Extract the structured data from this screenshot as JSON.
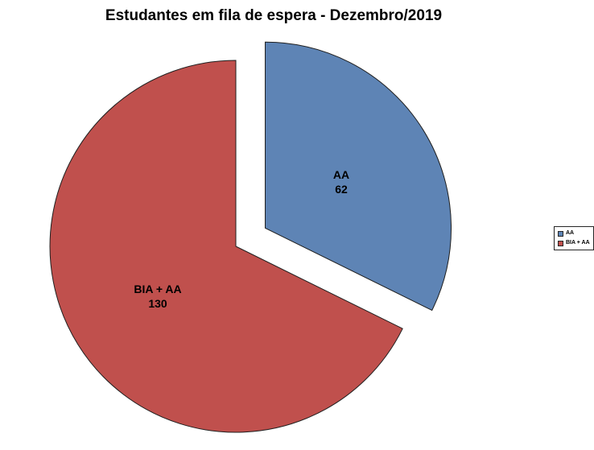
{
  "chart_data": {
    "type": "pie",
    "title": "Estudantes em fila de espera - Dezembro/2019",
    "categories": [
      "AA",
      "BIA + AA"
    ],
    "values": [
      62,
      130
    ],
    "start_angle_deg": 0,
    "direction": "clockwise",
    "legend_position": "right",
    "slice_border_color": "#1f1f1f",
    "slices": [
      {
        "label": "AA",
        "value": 62,
        "color": "#5e84b5",
        "exploded": true
      },
      {
        "label": "BIA + AA",
        "value": 130,
        "color": "#c0504d",
        "exploded": false
      }
    ]
  },
  "legend": {
    "items": [
      {
        "label": "AA",
        "color": "#5e84b5"
      },
      {
        "label": "BIA + AA",
        "color": "#c0504d"
      }
    ]
  }
}
